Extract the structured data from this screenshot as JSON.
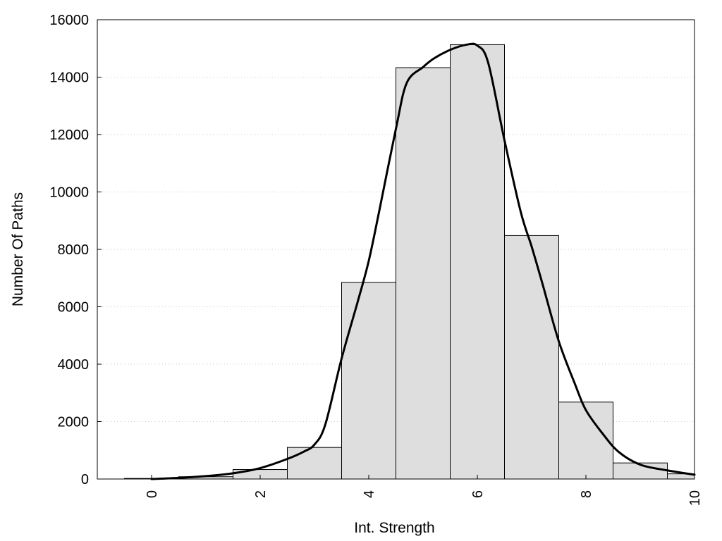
{
  "chart_data": {
    "type": "bar",
    "subtype": "histogram",
    "xlabel": "Int. Strength",
    "ylabel": "Number Of Paths",
    "xlim": [
      -1,
      10
    ],
    "ylim": [
      0,
      16000
    ],
    "xticks": [
      "0",
      "2",
      "4",
      "6",
      "8",
      "10"
    ],
    "yticks": [
      "0",
      "2000",
      "4000",
      "6000",
      "8000",
      "10000",
      "12000",
      "14000",
      "16000"
    ],
    "bin_width": 1,
    "bins": [
      {
        "center": 0,
        "value": 20
      },
      {
        "center": 1,
        "value": 80
      },
      {
        "center": 2,
        "value": 330
      },
      {
        "center": 3,
        "value": 1100
      },
      {
        "center": 4,
        "value": 6850
      },
      {
        "center": 5,
        "value": 14330
      },
      {
        "center": 6,
        "value": 15130
      },
      {
        "center": 7,
        "value": 8480
      },
      {
        "center": 8,
        "value": 2680
      },
      {
        "center": 9,
        "value": 560
      },
      {
        "center": 10,
        "value": 180
      }
    ],
    "density_curve": {
      "x": [
        0,
        0.5,
        1,
        1.5,
        2,
        2.5,
        2.8,
        3.0,
        3.2,
        3.5,
        3.8,
        4.0,
        4.2,
        4.5,
        4.7,
        5.0,
        5.2,
        5.5,
        5.8,
        6.0,
        6.2,
        6.5,
        6.8,
        7.0,
        7.2,
        7.5,
        7.8,
        8.0,
        8.3,
        8.6,
        9.0,
        9.5,
        10.0
      ],
      "y": [
        0,
        40,
        100,
        200,
        380,
        700,
        950,
        1200,
        1900,
        4200,
        6200,
        7600,
        9400,
        12200,
        13800,
        14350,
        14650,
        14950,
        15130,
        15100,
        14500,
        11800,
        9300,
        8100,
        6800,
        4800,
        3300,
        2400,
        1600,
        950,
        500,
        300,
        150
      ]
    },
    "grid": "horizontal-dotted",
    "legend": "none",
    "colors": {
      "bar_fill": "#dedede",
      "bar_stroke": "#000000",
      "curve": "#000000",
      "grid": "#cccccc"
    }
  }
}
